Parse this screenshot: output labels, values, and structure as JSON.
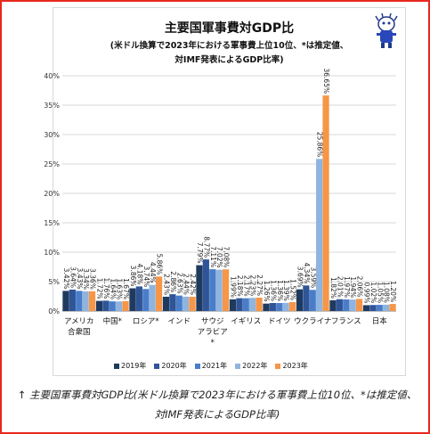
{
  "colors": {
    "frame": "#e8281e",
    "series": [
      "#1f3a5f",
      "#2f5597",
      "#4a7dc9",
      "#8fb4de",
      "#f79646"
    ]
  },
  "mascot": {
    "icon": "mascot-character-icon"
  },
  "chart_data": {
    "type": "bar",
    "title": "主要国軍事費対GDP比",
    "subtitle_lines": [
      "(米ドル換算で2023年における軍事費上位10位、*は推定値、",
      "対IMF発表によるGDP比率)"
    ],
    "categories": [
      "アメリカ合衆国",
      "中国*",
      "ロシア*",
      "インド",
      "サウジアラビア*",
      "イギリス",
      "ドイツ",
      "ウクライナ",
      "フランス",
      "日本"
    ],
    "category_lines": [
      [
        "アメリカ",
        "合衆国"
      ],
      [
        "中国*"
      ],
      [
        "ロシア*"
      ],
      [
        "インド"
      ],
      [
        "サウジ",
        "アラビア",
        "*"
      ],
      [
        "イギリス"
      ],
      [
        "ドイツ"
      ],
      [
        "ウクライナ"
      ],
      [
        "フランス"
      ],
      [
        "日本"
      ]
    ],
    "series": [
      {
        "name": "2019年",
        "values": [
          3.42,
          1.72,
          3.86,
          2.43,
          7.79,
          1.99,
          1.26,
          3.69,
          1.82,
          0.99
        ]
      },
      {
        "name": "2020年",
        "values": [
          3.64,
          1.76,
          4.18,
          2.86,
          8.77,
          2.18,
          1.36,
          4.34,
          2.01,
          1.02
        ]
      },
      {
        "name": "2021年",
        "values": [
          3.43,
          1.64,
          3.74,
          2.63,
          7.11,
          2.17,
          1.36,
          3.59,
          1.97,
          1.05
        ]
      },
      {
        "name": "2022年",
        "values": [
          3.34,
          1.63,
          4.44,
          2.44,
          7.02,
          2.23,
          1.39,
          25.86,
          1.94,
          1.08
        ]
      },
      {
        "name": "2023年",
        "values": [
          3.36,
          1.67,
          5.86,
          2.42,
          7.08,
          2.27,
          1.52,
          36.65,
          2.06,
          1.2
        ]
      }
    ],
    "y_ticks": [
      "0%",
      "5%",
      "10%",
      "15%",
      "20%",
      "25%",
      "30%",
      "35%",
      "40%"
    ],
    "ylim": [
      0,
      40
    ],
    "grid": true,
    "legend": "bottom"
  },
  "caption": "↑ 主要国軍事費対GDP比(米ドル換算で2023年における軍事費上位10位、*は推定値、対IMF発表によるGDP比率)"
}
